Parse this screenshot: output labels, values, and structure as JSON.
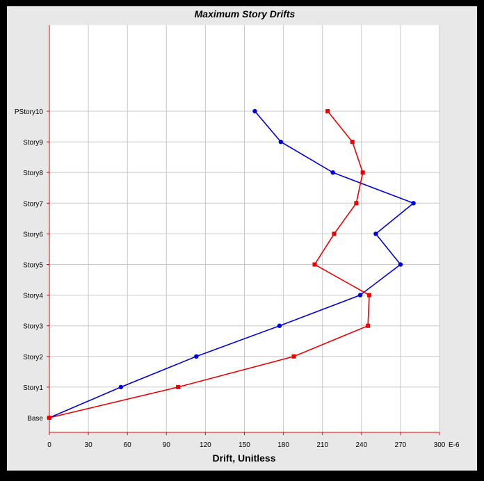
{
  "chart_data": {
    "type": "line",
    "title": "Maximum Story Drifts",
    "xlabel": "Drift, Unitless",
    "x_unit_suffix": "E-6",
    "xlim": [
      0,
      300
    ],
    "x_ticks": [
      "0",
      "30",
      "60",
      "90",
      "120",
      "150",
      "180",
      "210",
      "240",
      "270",
      "300"
    ],
    "categories": [
      "Base",
      "Story1",
      "Story2",
      "Story3",
      "Story4",
      "Story5",
      "Story6",
      "Story7",
      "Story8",
      "Story9",
      "PStory10"
    ],
    "grid": true,
    "series": [
      {
        "color": "#0000dd",
        "marker": "circle",
        "values": [
          0,
          55,
          113,
          177,
          239,
          270,
          251,
          280,
          218,
          178,
          158
        ]
      },
      {
        "color": "#ee0000",
        "marker": "square",
        "values": [
          0,
          99,
          188,
          245,
          246,
          204,
          219,
          236,
          241,
          233,
          214
        ]
      }
    ],
    "colors": {
      "axis": "#ee0000",
      "grid": "#c8c8c8",
      "plot_bg": "#ffffff",
      "panel_bg": "#e8e8e8"
    }
  }
}
